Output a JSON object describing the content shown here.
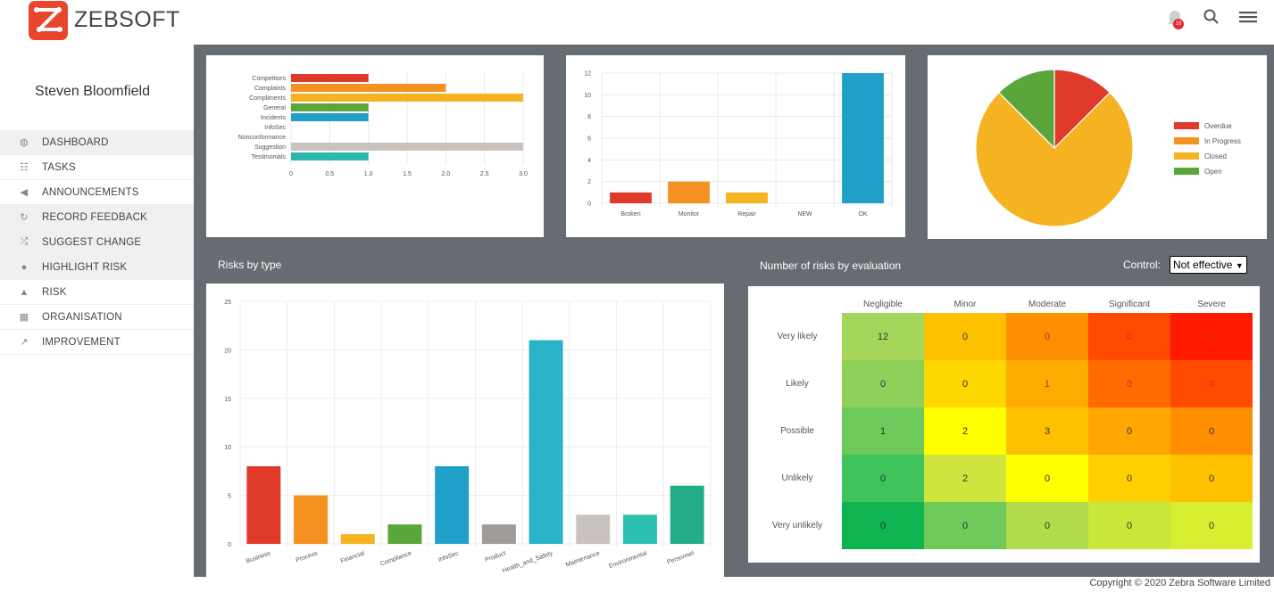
{
  "brand": {
    "name": "ZEBSOFT"
  },
  "notifications": {
    "count": "10"
  },
  "user": {
    "name": "Steven Bloomfield"
  },
  "nav": [
    {
      "label": "DASHBOARD",
      "icon": "dashboard-icon",
      "glyph": "◍"
    },
    {
      "label": "TASKS",
      "icon": "tasks-icon",
      "glyph": "☷"
    },
    {
      "label": "ANNOUNCEMENTS",
      "icon": "megaphone-icon",
      "glyph": "◀"
    },
    {
      "label": "RECORD FEEDBACK",
      "icon": "refresh-icon",
      "glyph": "↻"
    },
    {
      "label": "SUGGEST CHANGE",
      "icon": "shuffle-icon",
      "glyph": "⤮"
    },
    {
      "label": "HIGHLIGHT RISK",
      "icon": "risk-dot-icon",
      "glyph": "●"
    },
    {
      "label": "RISK",
      "icon": "warning-icon",
      "glyph": "▲"
    },
    {
      "label": "ORGANISATION",
      "icon": "building-icon",
      "glyph": "▦"
    },
    {
      "label": "IMPROVEMENT",
      "icon": "chart-line-icon",
      "glyph": "↗"
    }
  ],
  "footer": {
    "copyright": "Copyright © 2020 Zebra Software Limited"
  },
  "panels": {
    "risks_by_type_title": "Risks by type",
    "risk_eval_title": "Number of risks by evaluation",
    "control_label": "Control:",
    "control_value": "Not effective"
  },
  "chart_data": [
    {
      "type": "bar",
      "orientation": "horizontal",
      "categories": [
        "Competitors",
        "Complaints",
        "Compliments",
        "General",
        "Incidents",
        "InfoSec",
        "Nonconformance",
        "Suggestion",
        "Testimonials"
      ],
      "values": [
        1,
        2,
        3,
        1,
        1,
        0,
        0,
        3,
        1
      ],
      "colors": [
        "#e03a2a",
        "#f59120",
        "#f5b221",
        "#5aa63a",
        "#1fa0c9",
        "#8c8c8c",
        "#8c8c8c",
        "#c9c2bf",
        "#2ab7ae"
      ],
      "xlim": [
        0,
        3
      ],
      "xticks": [
        "0",
        "0.5",
        "1.0",
        "1.5",
        "2.0",
        "2.5",
        "3.0"
      ]
    },
    {
      "type": "bar",
      "categories": [
        "Broken",
        "Monitor",
        "Repair",
        "NEW",
        "OK"
      ],
      "values": [
        1,
        2,
        1,
        0,
        12
      ],
      "colors": [
        "#e03a2a",
        "#f59120",
        "#f5b221",
        "#5aa63a",
        "#1fa0c9"
      ],
      "ylim": [
        0,
        12
      ],
      "yticks": [
        "0",
        "2",
        "4",
        "6",
        "8",
        "10",
        "12"
      ]
    },
    {
      "type": "pie",
      "labels": [
        "Overdue",
        "In Progress",
        "Closed",
        "Open"
      ],
      "values": [
        1,
        0,
        6,
        1
      ],
      "colors": [
        "#e03a2a",
        "#f59120",
        "#f5b221",
        "#5aa63a"
      ],
      "legend": "right"
    },
    {
      "type": "bar",
      "title": "Risks by type",
      "categories": [
        "Business",
        "Process",
        "Financial",
        "Compliance",
        "InfoSec",
        "Product",
        "Health_and_Safety",
        "Maintenance",
        "Environmental",
        "Personnel"
      ],
      "values": [
        8,
        5,
        1,
        2,
        8,
        2,
        21,
        3,
        3,
        6
      ],
      "colors": [
        "#e03a2a",
        "#f59120",
        "#f5b221",
        "#5aa63a",
        "#1fa0c9",
        "#a09a98",
        "#2ab3c6",
        "#c9c2bf",
        "#2abfae",
        "#22ad88"
      ],
      "ylim": [
        0,
        25
      ],
      "yticks": [
        "0",
        "5",
        "10",
        "15",
        "20",
        "25"
      ]
    },
    {
      "type": "heatmap",
      "title": "Number of risks by evaluation",
      "columns": [
        "Negligible",
        "Minor",
        "Moderate",
        "Significant",
        "Severe"
      ],
      "rows": [
        "Very likely",
        "Likely",
        "Possible",
        "Unlikely",
        "Very unlikely"
      ],
      "values": [
        [
          "12",
          "0",
          "0",
          "0",
          "0"
        ],
        [
          "0",
          "0",
          "1",
          "0",
          "0"
        ],
        [
          "1",
          "2",
          "3",
          "0",
          "0"
        ],
        [
          "0",
          "2",
          "0",
          "0",
          "0"
        ],
        [
          "0",
          "0",
          "0",
          "0",
          "0"
        ]
      ],
      "colors": [
        [
          "#a3d65a",
          "#ffc000",
          "#fe8f00",
          "#ff4a00",
          "#ff1a00"
        ],
        [
          "#8fd05a",
          "#ffd700",
          "#ffac00",
          "#ff6b00",
          "#ff4a00"
        ],
        [
          "#6cc95a",
          "#ffff00",
          "#ffc000",
          "#ffa600",
          "#ff8f00"
        ],
        [
          "#3ec45a",
          "#cfe43f",
          "#ffff00",
          "#ffd000",
          "#ffc000"
        ],
        [
          "#0fb450",
          "#6ecb5a",
          "#b0db4a",
          "#c9e63a",
          "#d8ee30"
        ]
      ]
    }
  ]
}
